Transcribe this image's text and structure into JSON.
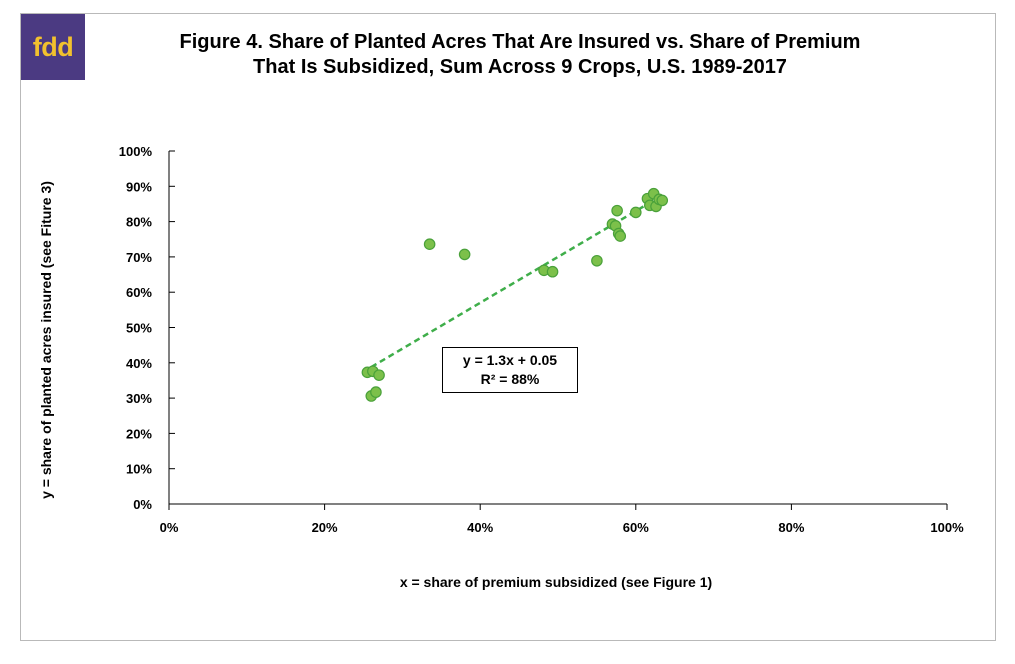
{
  "logo": {
    "text": "fdd",
    "bg_color": "#4b3a82",
    "text_color": "#f2c12e"
  },
  "chart_data": {
    "type": "scatter",
    "title_lines": [
      "Figure 4.   Share of Planted Acres That Are Insured vs. Share of Premium",
      "That Is Subsidized, Sum Across 9 Crops, U.S. 1989-2017"
    ],
    "xlabel": "x = share of premium subsidized  (see Figure 1)",
    "ylabel": "y = share of planted acres insured  (see Fiture 3)",
    "xlim": [
      0,
      100
    ],
    "ylim": [
      0,
      100
    ],
    "x_ticks": [
      0,
      20,
      40,
      60,
      80,
      100
    ],
    "y_ticks": [
      0,
      10,
      20,
      30,
      40,
      50,
      60,
      70,
      80,
      90,
      100
    ],
    "x_tick_labels": [
      "0%",
      "20%",
      "40%",
      "60%",
      "80%",
      "100%"
    ],
    "y_tick_labels": [
      "0%",
      "10%",
      "20%",
      "30%",
      "40%",
      "50%",
      "60%",
      "70%",
      "80%",
      "90%",
      "100%"
    ],
    "grid": false,
    "marker_color": "#7cc04a",
    "marker_edge_color": "#4aa13a",
    "trendline_color": "#3fae4a",
    "points": [
      {
        "x": 25.5,
        "y": 37.3
      },
      {
        "x": 26.2,
        "y": 37.6
      },
      {
        "x": 27.0,
        "y": 36.5
      },
      {
        "x": 26.0,
        "y": 30.6
      },
      {
        "x": 26.6,
        "y": 31.7
      },
      {
        "x": 33.5,
        "y": 73.6
      },
      {
        "x": 38.0,
        "y": 70.7
      },
      {
        "x": 48.2,
        "y": 66.2
      },
      {
        "x": 49.3,
        "y": 65.8
      },
      {
        "x": 55.0,
        "y": 68.9
      },
      {
        "x": 57.0,
        "y": 79.3
      },
      {
        "x": 57.4,
        "y": 78.8
      },
      {
        "x": 57.6,
        "y": 83.1
      },
      {
        "x": 57.8,
        "y": 76.6
      },
      {
        "x": 58.0,
        "y": 75.9
      },
      {
        "x": 60.0,
        "y": 82.6
      },
      {
        "x": 61.5,
        "y": 86.5
      },
      {
        "x": 61.8,
        "y": 84.6
      },
      {
        "x": 62.3,
        "y": 87.9
      },
      {
        "x": 62.6,
        "y": 84.3
      },
      {
        "x": 63.0,
        "y": 86.3
      },
      {
        "x": 63.4,
        "y": 86.0
      }
    ],
    "trendline": {
      "x_start": 26.0,
      "x_end": 63.0,
      "slope": 1.3,
      "intercept": 5
    },
    "annotation": {
      "line1": "y = 1.3x + 0.05",
      "line2": "R² = 88%"
    }
  }
}
